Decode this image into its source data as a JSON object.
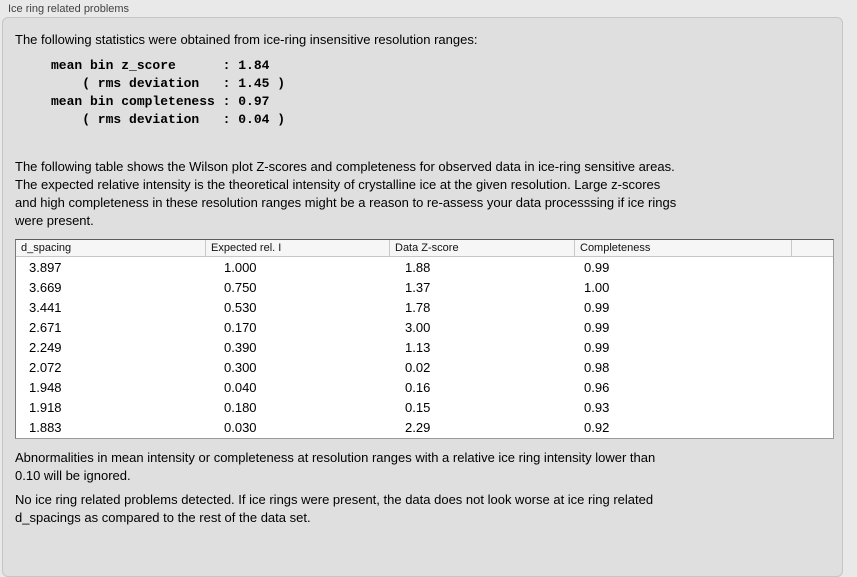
{
  "panel": {
    "title": "Ice ring related problems",
    "intro": "The following statistics were obtained from ice-ring insensitive resolution ranges:",
    "stats_text": "mean bin z_score      : 1.84\n    ( rms deviation   : 1.45 )\nmean bin completeness : 0.97\n    ( rms deviation   : 0.04 )",
    "stats": {
      "mean_bin_z_score": "1.84",
      "z_score_rms_deviation": "1.45",
      "mean_bin_completeness": "0.97",
      "completeness_rms_deviation": "0.04"
    },
    "table_description": "The following table shows the Wilson plot Z-scores and completeness for observed data in ice-ring sensitive areas.\nThe expected relative intensity is the theoretical intensity of crystalline ice at the given resolution. Large z-scores\nand high completeness in these resolution ranges might be a reason to re-assess your data processsing if ice rings\nwere present.",
    "ignore_note": "Abnormalities in mean intensity or completeness at resolution ranges with a relative ice ring intensity lower than\n0.10 will be ignored.",
    "conclusion": "No ice ring related problems detected. If ice rings were present, the data does not look worse at ice ring related\nd_spacings as compared to the rest of the data set."
  },
  "table": {
    "columns": [
      "d_spacing",
      "Expected rel. I",
      "Data Z-score",
      "Completeness",
      ""
    ],
    "rows": [
      [
        "3.897",
        "1.000",
        "1.88",
        "0.99"
      ],
      [
        "3.669",
        "0.750",
        "1.37",
        "1.00"
      ],
      [
        "3.441",
        "0.530",
        "1.78",
        "0.99"
      ],
      [
        "2.671",
        "0.170",
        "3.00",
        "0.99"
      ],
      [
        "2.249",
        "0.390",
        "1.13",
        "0.99"
      ],
      [
        "2.072",
        "0.300",
        "0.02",
        "0.98"
      ],
      [
        "1.948",
        "0.040",
        "0.16",
        "0.96"
      ],
      [
        "1.918",
        "0.180",
        "0.15",
        "0.93"
      ],
      [
        "1.883",
        "0.030",
        "2.29",
        "0.92"
      ]
    ]
  },
  "colors": {
    "page_bg": "#e9e9e9",
    "panel_bg": "#dfdfdf",
    "panel_border": "#c5c5c5",
    "table_bg": "#ffffff",
    "table_border": "#9a9a9a",
    "header_bg": "#f6f6f6",
    "header_divider": "#c9c9c9",
    "text": "#000000",
    "title_text": "#424242"
  }
}
